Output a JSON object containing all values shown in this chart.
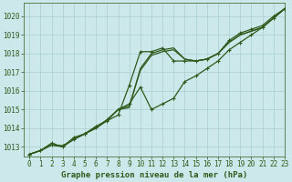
{
  "background_color": "#cce8ea",
  "grid_color": "#aacfd2",
  "line_color": "#2d5a1b",
  "title": "Graphe pression niveau de la mer (hPa)",
  "xlim": [
    -0.5,
    23
  ],
  "ylim": [
    1012.5,
    1020.7
  ],
  "yticks": [
    1013,
    1014,
    1015,
    1016,
    1017,
    1018,
    1019,
    1020
  ],
  "xticks": [
    0,
    1,
    2,
    3,
    4,
    5,
    6,
    7,
    8,
    9,
    10,
    11,
    12,
    13,
    14,
    15,
    16,
    17,
    18,
    19,
    20,
    21,
    22,
    23
  ],
  "series": [
    {
      "x": [
        0,
        1,
        2,
        3,
        4,
        5,
        6,
        7,
        8,
        9,
        10,
        11,
        12,
        13,
        14,
        15,
        16,
        17,
        18,
        19,
        20,
        21,
        22,
        23
      ],
      "y": [
        1012.6,
        1012.8,
        1013.2,
        1013.0,
        1013.5,
        1013.7,
        1014.1,
        1014.4,
        1014.7,
        1016.3,
        1018.1,
        1018.1,
        1018.3,
        1017.6,
        1017.6,
        1017.6,
        1017.7,
        1018.0,
        1018.7,
        1019.1,
        1019.3,
        1019.5,
        1020.0,
        1020.4
      ],
      "marker": true,
      "lw": 0.9
    },
    {
      "x": [
        0,
        1,
        2,
        3,
        4,
        5,
        6,
        7,
        8,
        9,
        10,
        11,
        12,
        13,
        14,
        15,
        16,
        17,
        18,
        19,
        20,
        21,
        22,
        23
      ],
      "y": [
        1012.6,
        1012.8,
        1013.1,
        1013.0,
        1013.4,
        1013.7,
        1014.0,
        1014.4,
        1015.0,
        1015.1,
        1017.2,
        1018.0,
        1018.2,
        1018.3,
        1017.7,
        1017.6,
        1017.7,
        1018.0,
        1018.6,
        1019.0,
        1019.2,
        1019.4,
        1019.9,
        1020.4
      ],
      "marker": false,
      "lw": 0.9
    },
    {
      "x": [
        0,
        1,
        2,
        3,
        4,
        5,
        6,
        7,
        8,
        9,
        10,
        11,
        12,
        13,
        14,
        15,
        16,
        17,
        18,
        19,
        20,
        21,
        22,
        23
      ],
      "y": [
        1012.6,
        1012.8,
        1013.1,
        1013.05,
        1013.4,
        1013.7,
        1014.0,
        1014.45,
        1015.0,
        1015.2,
        1017.1,
        1017.9,
        1018.1,
        1018.2,
        1017.7,
        1017.6,
        1017.7,
        1018.0,
        1018.6,
        1019.0,
        1019.2,
        1019.4,
        1019.9,
        1020.4
      ],
      "marker": false,
      "lw": 0.9
    },
    {
      "x": [
        0,
        1,
        2,
        3,
        4,
        5,
        6,
        7,
        8,
        9,
        10,
        11,
        12,
        13,
        14,
        15,
        16,
        17,
        18,
        19,
        20,
        21,
        22,
        23
      ],
      "y": [
        1012.6,
        1012.8,
        1013.1,
        1013.05,
        1013.4,
        1013.7,
        1014.05,
        1014.45,
        1015.0,
        1015.3,
        1016.2,
        1015.0,
        1015.3,
        1015.6,
        1016.5,
        1016.8,
        1017.2,
        1017.6,
        1018.2,
        1018.6,
        1019.0,
        1019.4,
        1019.9,
        1020.4
      ],
      "marker": true,
      "lw": 0.9
    }
  ],
  "title_fontsize": 6.5,
  "tick_fontsize": 5.5
}
